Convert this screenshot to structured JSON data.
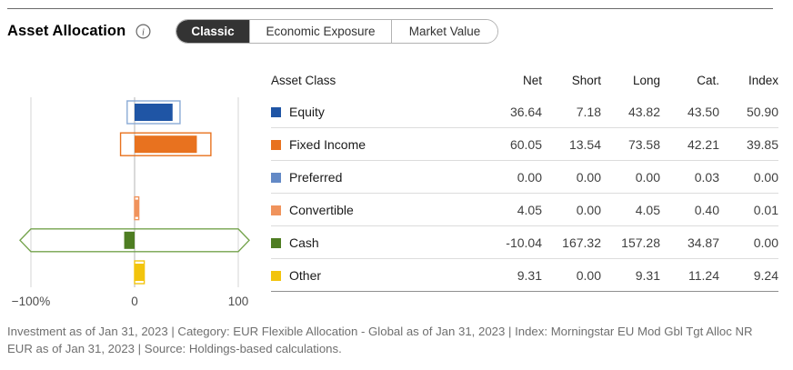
{
  "header": {
    "title": "Asset Allocation",
    "info_icon": "info-circle",
    "tabs": [
      {
        "label": "Classic",
        "selected": true
      },
      {
        "label": "Economic Exposure",
        "selected": false
      },
      {
        "label": "Market Value",
        "selected": false
      }
    ]
  },
  "table": {
    "columns": [
      "Asset Class",
      "Net",
      "Short",
      "Long",
      "Cat.",
      "Index"
    ],
    "rows": [
      {
        "label": "Equity",
        "color": "#1f55a5",
        "net": "36.64",
        "short": "7.18",
        "long": "43.82",
        "cat": "43.50",
        "index": "50.90"
      },
      {
        "label": "Fixed Income",
        "color": "#e8721f",
        "net": "60.05",
        "short": "13.54",
        "long": "73.58",
        "cat": "42.21",
        "index": "39.85"
      },
      {
        "label": "Preferred",
        "color": "#6389c6",
        "net": "0.00",
        "short": "0.00",
        "long": "0.00",
        "cat": "0.03",
        "index": "0.00"
      },
      {
        "label": "Convertible",
        "color": "#f0935c",
        "net": "4.05",
        "short": "0.00",
        "long": "4.05",
        "cat": "0.40",
        "index": "0.01"
      },
      {
        "label": "Cash",
        "color": "#4e7d22",
        "net": "-10.04",
        "short": "167.32",
        "long": "157.28",
        "cat": "34.87",
        "index": "0.00"
      },
      {
        "label": "Other",
        "color": "#f2c40d",
        "net": "9.31",
        "short": "0.00",
        "long": "9.31",
        "cat": "11.24",
        "index": "9.24"
      }
    ]
  },
  "chart_data": {
    "type": "bar",
    "orientation": "horizontal",
    "title": "",
    "xlabel": "",
    "xlim": [
      -100,
      100
    ],
    "xticks": {
      "values": [
        -100,
        0,
        100
      ],
      "labels": [
        "−100%",
        "0",
        "100"
      ]
    },
    "grid": true,
    "legend_position": "table-right",
    "bar_rule": "outlined box spans -Short to +Long (arrow tips where clipped at xlim); solid bar spans 0 to Net",
    "categories": [
      "Equity",
      "Fixed Income",
      "Preferred",
      "Convertible",
      "Cash",
      "Other"
    ],
    "series": [
      {
        "name": "Net",
        "values": [
          36.64,
          60.05,
          0.0,
          4.05,
          -10.04,
          9.31
        ]
      },
      {
        "name": "Short",
        "values": [
          7.18,
          13.54,
          0.0,
          0.0,
          167.32,
          0.0
        ]
      },
      {
        "name": "Long",
        "values": [
          43.82,
          73.58,
          0.0,
          4.05,
          157.28,
          9.31
        ]
      }
    ],
    "fill_colors": [
      "#1f55a5",
      "#e8721f",
      "#6389c6",
      "#f0935c",
      "#4e7d22",
      "#f2c40d"
    ],
    "outline_colors": [
      "#8aaad5",
      "#e8721f",
      "#6389c6",
      "#f0935c",
      "#74a34c",
      "#f2c40d"
    ],
    "gridline_color": "#d4d4d4",
    "zeroline_color": "#b5b5b5",
    "tick_label_color": "#4d4d4d"
  },
  "footer": {
    "text": "Investment as of Jan 31, 2023 | Category: EUR Flexible Allocation - Global as of Jan 31, 2023 | Index: Morningstar EU Mod Gbl Tgt Alloc NR EUR as of Jan 31, 2023 | Source: Holdings-based calculations."
  }
}
